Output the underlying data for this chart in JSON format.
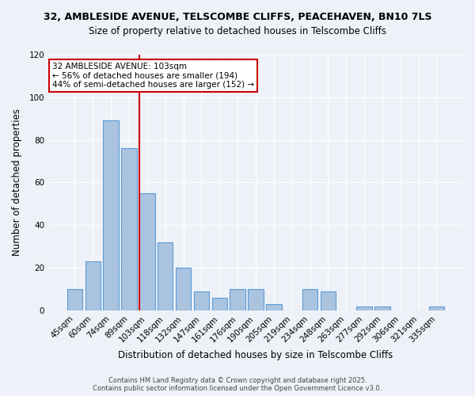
{
  "title1": "32, AMBLESIDE AVENUE, TELSCOMBE CLIFFS, PEACEHAVEN, BN10 7LS",
  "title2": "Size of property relative to detached houses in Telscombe Cliffs",
  "xlabel": "Distribution of detached houses by size in Telscombe Cliffs",
  "ylabel": "Number of detached properties",
  "bar_labels": [
    "45sqm",
    "60sqm",
    "74sqm",
    "89sqm",
    "103sqm",
    "118sqm",
    "132sqm",
    "147sqm",
    "161sqm",
    "176sqm",
    "190sqm",
    "205sqm",
    "219sqm",
    "234sqm",
    "248sqm",
    "263sqm",
    "277sqm",
    "292sqm",
    "306sqm",
    "321sqm",
    "335sqm"
  ],
  "bar_values": [
    10,
    23,
    89,
    76,
    55,
    32,
    20,
    9,
    6,
    10,
    10,
    3,
    0,
    10,
    9,
    0,
    2,
    2,
    0,
    0,
    2
  ],
  "bar_color": "#aac4e0",
  "bar_edge_color": "#5b9bd5",
  "vline_color": "#cc0000",
  "annotation_title": "32 AMBLESIDE AVENUE: 103sqm",
  "annotation_line1": "← 56% of detached houses are smaller (194)",
  "annotation_line2": "44% of semi-detached houses are larger (152) →",
  "annotation_box_color": "#ffffff",
  "annotation_box_edge": "#cc0000",
  "ylim": [
    0,
    120
  ],
  "yticks": [
    0,
    20,
    40,
    60,
    80,
    100,
    120
  ],
  "footer1": "Contains HM Land Registry data © Crown copyright and database right 2025.",
  "footer2": "Contains public sector information licensed under the Open Government Licence v3.0.",
  "bg_color": "#eef2f8",
  "plot_bg_color": "#eef2f8"
}
